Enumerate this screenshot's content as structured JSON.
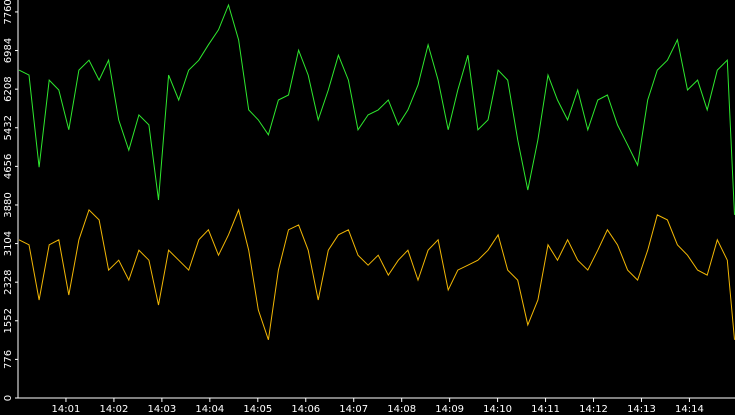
{
  "chart_data": {
    "type": "line",
    "x": [
      0.02,
      0.23,
      0.44,
      0.65,
      0.85,
      1.06,
      1.27,
      1.48,
      1.69,
      1.89,
      2.1,
      2.31,
      2.52,
      2.73,
      2.93,
      3.14,
      3.35,
      3.56,
      3.77,
      3.97,
      4.18,
      4.39,
      4.6,
      4.81,
      5.01,
      5.22,
      5.43,
      5.64,
      5.85,
      6.05,
      6.26,
      6.47,
      6.68,
      6.89,
      7.09,
      7.3,
      7.51,
      7.72,
      7.93,
      8.13,
      8.34,
      8.55,
      8.76,
      8.97,
      9.17,
      9.38,
      9.59,
      9.8,
      10.01,
      10.21,
      10.42,
      10.63,
      10.84,
      11.05,
      11.25,
      11.46,
      11.67,
      11.88,
      12.09,
      12.29,
      12.5,
      12.71,
      12.92,
      13.13,
      13.33,
      13.54,
      13.75,
      13.96,
      14.17,
      14.37,
      14.58,
      14.79,
      14.94
    ],
    "series": [
      {
        "color": "#2ee82e",
        "values": [
          6590,
          6490,
          4640,
          6390,
          6190,
          5390,
          6590,
          6790,
          6390,
          6790,
          5590,
          4980,
          5690,
          5490,
          3980,
          6490,
          5990,
          6590,
          6790,
          7100,
          7400,
          7900,
          7200,
          5790,
          5590,
          5290,
          5990,
          6090,
          6990,
          6490,
          5590,
          6190,
          6890,
          6390,
          5390,
          5690,
          5790,
          5990,
          5490,
          5790,
          6290,
          7100,
          6390,
          5390,
          6190,
          6890,
          5390,
          5590,
          6590,
          6390,
          5190,
          4180,
          5190,
          6490,
          5990,
          5590,
          6190,
          5390,
          5990,
          6090,
          5490,
          5090,
          4680,
          5990,
          6590,
          6790,
          7200,
          6190,
          6390,
          5790,
          6590,
          6790,
          3680
        ]
      },
      {
        "color": "#f2b705",
        "values": [
          3180,
          3080,
          1970,
          3080,
          3180,
          2070,
          3180,
          3780,
          3580,
          2570,
          2770,
          2370,
          2970,
          2770,
          1870,
          2970,
          2770,
          2570,
          3180,
          3380,
          2870,
          3280,
          3780,
          2970,
          1770,
          1170,
          2570,
          3380,
          3480,
          2970,
          1970,
          2970,
          3280,
          3380,
          2870,
          2670,
          2870,
          2470,
          2770,
          2970,
          2370,
          2970,
          3180,
          2170,
          2570,
          2670,
          2770,
          2970,
          3280,
          2570,
          2370,
          1470,
          1970,
          3080,
          2770,
          3180,
          2770,
          2570,
          2970,
          3380,
          3080,
          2570,
          2370,
          2970,
          3680,
          3580,
          3080,
          2870,
          2570,
          2470,
          3180,
          2770,
          1170
        ]
      }
    ],
    "xlim": [
      0,
      14.95
    ],
    "xticks": [
      {
        "value": 1,
        "label": "14:01"
      },
      {
        "value": 2,
        "label": "14:02"
      },
      {
        "value": 3,
        "label": "14:03"
      },
      {
        "value": 4,
        "label": "14:04"
      },
      {
        "value": 5,
        "label": "14:05"
      },
      {
        "value": 6,
        "label": "14:06"
      },
      {
        "value": 7,
        "label": "14:07"
      },
      {
        "value": 8,
        "label": "14:08"
      },
      {
        "value": 9,
        "label": "14:09"
      },
      {
        "value": 10,
        "label": "14:10"
      },
      {
        "value": 11,
        "label": "14:11"
      },
      {
        "value": 12,
        "label": "14:12"
      },
      {
        "value": 13,
        "label": "14:13"
      },
      {
        "value": 14,
        "label": "14:14"
      }
    ],
    "ylim": [
      0,
      8000
    ],
    "yticks": [
      0,
      776,
      1552,
      2328,
      3104,
      3880,
      4656,
      5432,
      6208,
      6984,
      7760
    ]
  }
}
